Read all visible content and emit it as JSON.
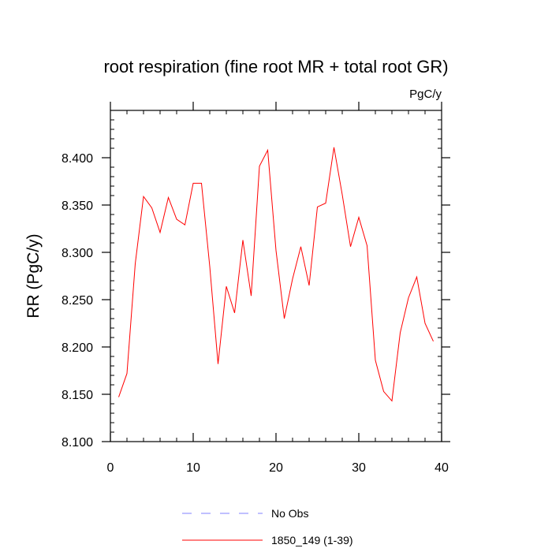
{
  "chart_data": {
    "type": "line",
    "title": "root respiration (fine root MR + total root GR)",
    "units": "PgC/y",
    "xlabel": "",
    "ylabel": "RR  (PgC/y)",
    "xlim": [
      0,
      40
    ],
    "ylim": [
      8.1,
      8.45
    ],
    "x_ticks": [
      0,
      10,
      20,
      30,
      40
    ],
    "x_tick_labels": [
      "0",
      "10",
      "20",
      "30",
      "40"
    ],
    "y_ticks": [
      8.1,
      8.15,
      8.2,
      8.25,
      8.3,
      8.35,
      8.4
    ],
    "y_tick_labels": [
      "8.100",
      "8.150",
      "8.200",
      "8.250",
      "8.300",
      "8.350",
      "8.400"
    ],
    "grid": false,
    "legend_position": "bottom",
    "series": [
      {
        "name": "1850_149 (1-39)",
        "color": "#ff0000",
        "dash": "solid",
        "x": [
          1,
          2,
          3,
          4,
          5,
          6,
          7,
          8,
          9,
          10,
          11,
          12,
          13,
          14,
          15,
          16,
          17,
          18,
          19,
          20,
          21,
          22,
          23,
          24,
          25,
          26,
          27,
          28,
          29,
          30,
          31,
          32,
          33,
          34,
          35,
          36,
          37,
          38,
          39
        ],
        "values": [
          8.147,
          8.172,
          8.288,
          8.359,
          8.347,
          8.321,
          8.358,
          8.335,
          8.329,
          8.373,
          8.373,
          8.285,
          8.182,
          8.264,
          8.236,
          8.313,
          8.254,
          8.391,
          8.408,
          8.302,
          8.23,
          8.272,
          8.306,
          8.265,
          8.348,
          8.352,
          8.411,
          8.361,
          8.306,
          8.337,
          8.307,
          8.186,
          8.153,
          8.143,
          8.215,
          8.252,
          8.274,
          8.225,
          8.206
        ]
      }
    ],
    "legend": [
      {
        "label": "No Obs",
        "color": "#8080ff",
        "dash": "dashed"
      },
      {
        "label": "1850_149 (1-39)",
        "color": "#ff0000",
        "dash": "solid"
      }
    ]
  }
}
